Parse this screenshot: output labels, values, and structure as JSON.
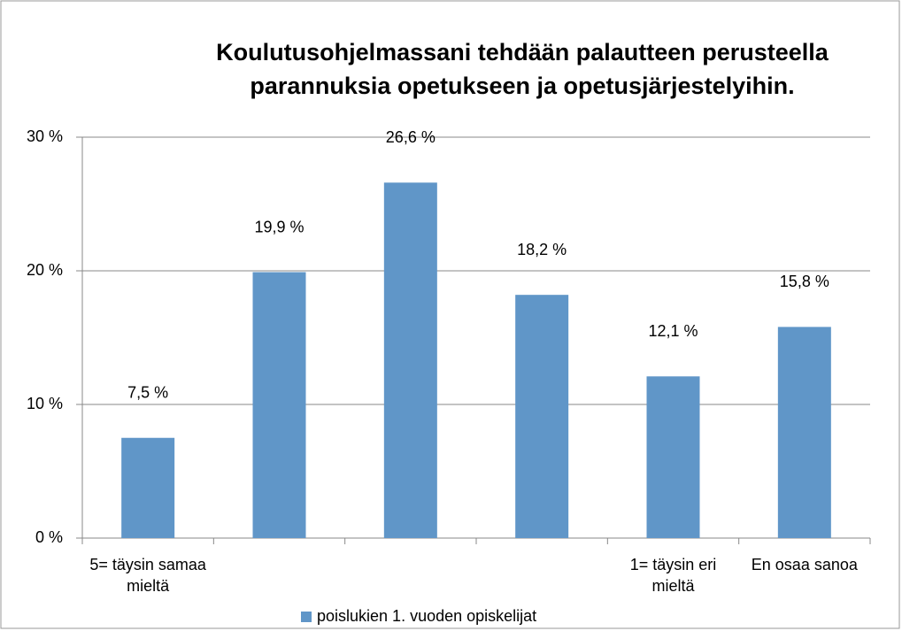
{
  "chart_data": {
    "type": "bar",
    "title": "Koulutusohjelmassani tehdään palautteen perusteella parannuksia opetukseen ja opetusjärjestelyihin.",
    "categories": [
      "5= täysin samaa  mieltä",
      null,
      null,
      null,
      "1= täysin eri mieltä",
      "En osaa sanoa"
    ],
    "series": [
      {
        "name": "poislukien 1. vuoden opiskelijat",
        "color": "#6096c8",
        "values": [
          7.5,
          19.9,
          26.6,
          18.2,
          12.1,
          15.8
        ],
        "value_labels": [
          "7,5 %",
          "19,9 %",
          "26,6 %",
          "18,2 %",
          "12,1 %",
          "15,8 %"
        ]
      }
    ],
    "ylim": [
      0,
      30
    ],
    "yticks": [
      {
        "value": 0,
        "label": "0 %"
      },
      {
        "value": 10,
        "label": "10 %"
      },
      {
        "value": 20,
        "label": "20 %"
      },
      {
        "value": 30,
        "label": "30 %"
      }
    ],
    "grid": true,
    "legend": "bottom"
  }
}
